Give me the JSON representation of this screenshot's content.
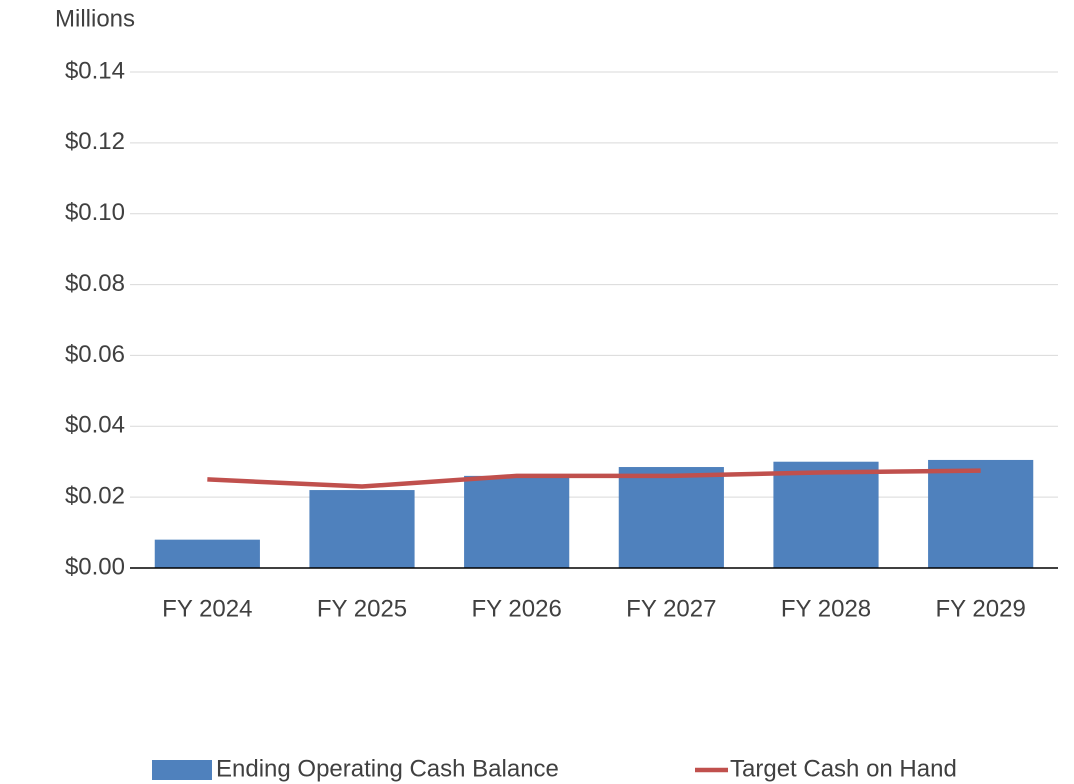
{
  "chart_data": {
    "type": "combo",
    "unit_label": "Millions",
    "categories": [
      "FY 2024",
      "FY 2025",
      "FY 2026",
      "FY 2027",
      "FY 2028",
      "FY 2029"
    ],
    "series": [
      {
        "name": "Ending Operating Cash Balance",
        "type": "bar",
        "color": "#4f81bd",
        "values": [
          0.008,
          0.022,
          0.026,
          0.0285,
          0.03,
          0.0305
        ]
      },
      {
        "name": "Target Cash on Hand",
        "type": "line",
        "color": "#c0504d",
        "values": [
          0.025,
          0.023,
          0.026,
          0.026,
          0.027,
          0.0275
        ]
      }
    ],
    "ylim": [
      0,
      0.14
    ],
    "yticks": [
      {
        "value": 0,
        "label": "$0.00"
      },
      {
        "value": 0.02,
        "label": "$0.02"
      },
      {
        "value": 0.04,
        "label": "$0.04"
      },
      {
        "value": 0.06,
        "label": "$0.06"
      },
      {
        "value": 0.08,
        "label": "$0.08"
      },
      {
        "value": 0.1,
        "label": "$0.10"
      },
      {
        "value": 0.12,
        "label": "$0.12"
      },
      {
        "value": 0.14,
        "label": "$0.14"
      }
    ],
    "grid": true,
    "legend": "bottom"
  }
}
